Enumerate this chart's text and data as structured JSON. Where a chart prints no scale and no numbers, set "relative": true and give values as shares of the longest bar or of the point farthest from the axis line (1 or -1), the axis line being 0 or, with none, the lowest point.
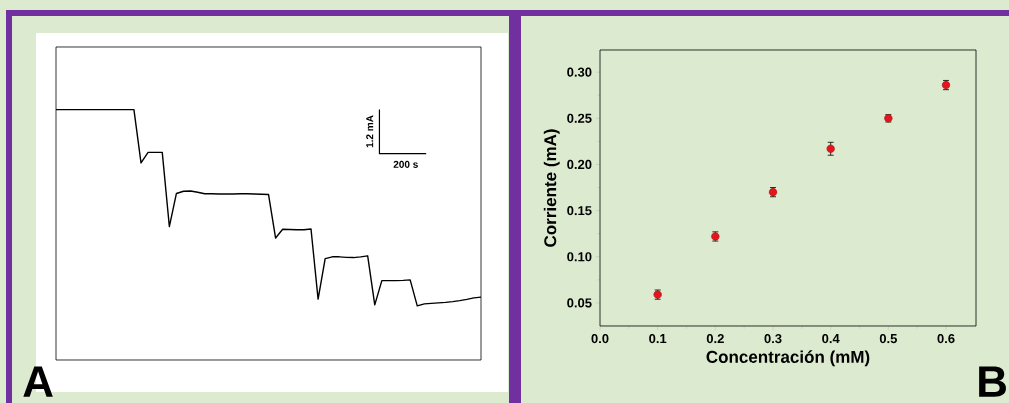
{
  "chart_data": [
    {
      "type": "line",
      "relative": true,
      "tick_labels": false,
      "color": "#000000",
      "categories": [
        null,
        null,
        null,
        null,
        null,
        null,
        null,
        null,
        null,
        null,
        null,
        null,
        null,
        null,
        null,
        null,
        null,
        null,
        null,
        null,
        null,
        null,
        null,
        null,
        null,
        null,
        null,
        null,
        null,
        null,
        null,
        null,
        null,
        null,
        null,
        null,
        null,
        null,
        null,
        null,
        null,
        null,
        null,
        null,
        null,
        null,
        null,
        null,
        null,
        null,
        null,
        null,
        null,
        null,
        null,
        null,
        null,
        null,
        null,
        null,
        null
      ],
      "values": [
        1.0,
        1.0,
        1.0,
        1.0,
        1.0,
        1.0,
        1.0,
        1.0,
        1.0,
        1.0,
        1.0,
        1.0,
        0.787,
        0.829,
        0.829,
        0.829,
        0.533,
        0.665,
        0.674,
        0.675,
        0.67,
        0.664,
        0.664,
        0.663,
        0.663,
        0.663,
        0.664,
        0.664,
        0.663,
        0.662,
        0.661,
        0.487,
        0.522,
        0.521,
        0.52,
        0.52,
        0.523,
        0.243,
        0.405,
        0.412,
        0.412,
        0.41,
        0.409,
        0.412,
        0.416,
        0.22,
        0.317,
        0.317,
        0.317,
        0.318,
        0.32,
        0.216,
        0.224,
        0.226,
        0.228,
        0.23,
        0.233,
        0.237,
        0.242,
        0.248,
        0.251
      ],
      "annotations": [
        "1.2 mA",
        "200 s",
        "A"
      ]
    },
    {
      "type": "scatter",
      "marker": "circle",
      "color": "#e8141c",
      "xlabel": "Concentración (mM)",
      "ylabel": "Corriente (mA)",
      "x": [
        0.1,
        0.2,
        0.3,
        0.4,
        0.5,
        0.6
      ],
      "values": [
        0.059,
        0.122,
        0.17,
        0.217,
        0.25,
        0.286
      ],
      "errors": [
        0.005,
        0.005,
        0.005,
        0.007,
        0.004,
        0.005
      ],
      "xlim": [
        0,
        0.652
      ],
      "ylim": [
        0.025,
        0.324
      ],
      "xticks": [
        {
          "value": 0,
          "label": "0.0"
        },
        {
          "value": 0.1,
          "label": "0.1"
        },
        {
          "value": 0.2,
          "label": "0.2"
        },
        {
          "value": 0.3,
          "label": "0.3"
        },
        {
          "value": 0.4,
          "label": "0.4"
        },
        {
          "value": 0.5,
          "label": "0.5"
        },
        {
          "value": 0.6,
          "label": "0.6"
        }
      ],
      "yticks": [
        {
          "value": 0.05,
          "label": "0.05"
        },
        {
          "value": 0.1,
          "label": "0.10"
        },
        {
          "value": 0.15,
          "label": "0.15"
        },
        {
          "value": 0.2,
          "label": "0.20"
        },
        {
          "value": 0.25,
          "label": "0.25"
        },
        {
          "value": 0.3,
          "label": "0.30"
        }
      ],
      "annotations": [
        "B"
      ]
    }
  ]
}
